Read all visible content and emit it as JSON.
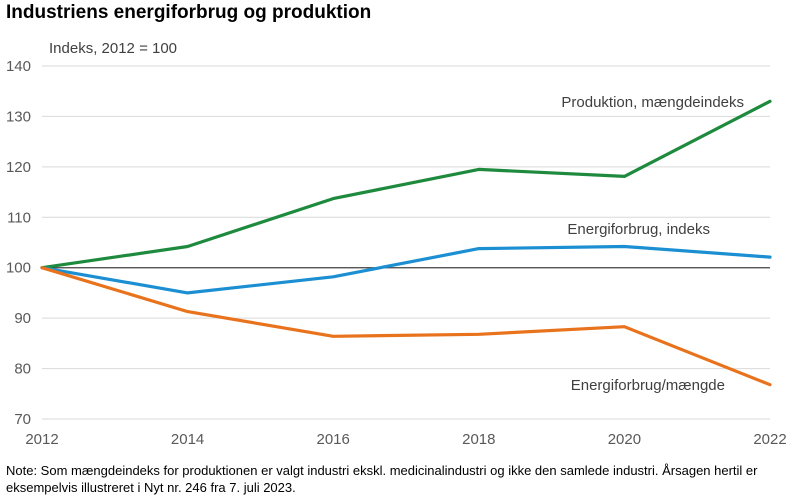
{
  "title": "Industriens energiforbrug og produktion",
  "note": "Note: Som mængdeindeks for produktionen er valgt industri ekskl. medicinalindustri og ikke den samlede industri. Årsagen hertil er eksempelvis illustreret i Nyt nr. 246 fra 7. juli 2023.",
  "chart_data": {
    "type": "line",
    "ylabel": "Indeks, 2012 = 100",
    "ylim": [
      70,
      140
    ],
    "xlim": [
      2012,
      2022
    ],
    "yticks": [
      70,
      80,
      90,
      100,
      110,
      120,
      130,
      140
    ],
    "xticks": [
      2012,
      2014,
      2016,
      2018,
      2020,
      2022
    ],
    "grid": "horizontal",
    "reference_line": 100,
    "x": [
      2012,
      2014,
      2016,
      2018,
      2020,
      2022
    ],
    "series": [
      {
        "name": "Produktion, mængdeindeks",
        "color": "#1e8a3e",
        "values": [
          100,
          104.2,
          113.7,
          119.5,
          118.1,
          133
        ]
      },
      {
        "name": "Energiforbrug, indeks",
        "color": "#1b8fd2",
        "values": [
          100,
          95,
          98.2,
          103.8,
          104.2,
          102.1
        ]
      },
      {
        "name": "Energiforbrug/mængde",
        "color": "#e8731c",
        "values": [
          100,
          91.3,
          86.4,
          86.8,
          88.3,
          76.8
        ]
      }
    ]
  }
}
